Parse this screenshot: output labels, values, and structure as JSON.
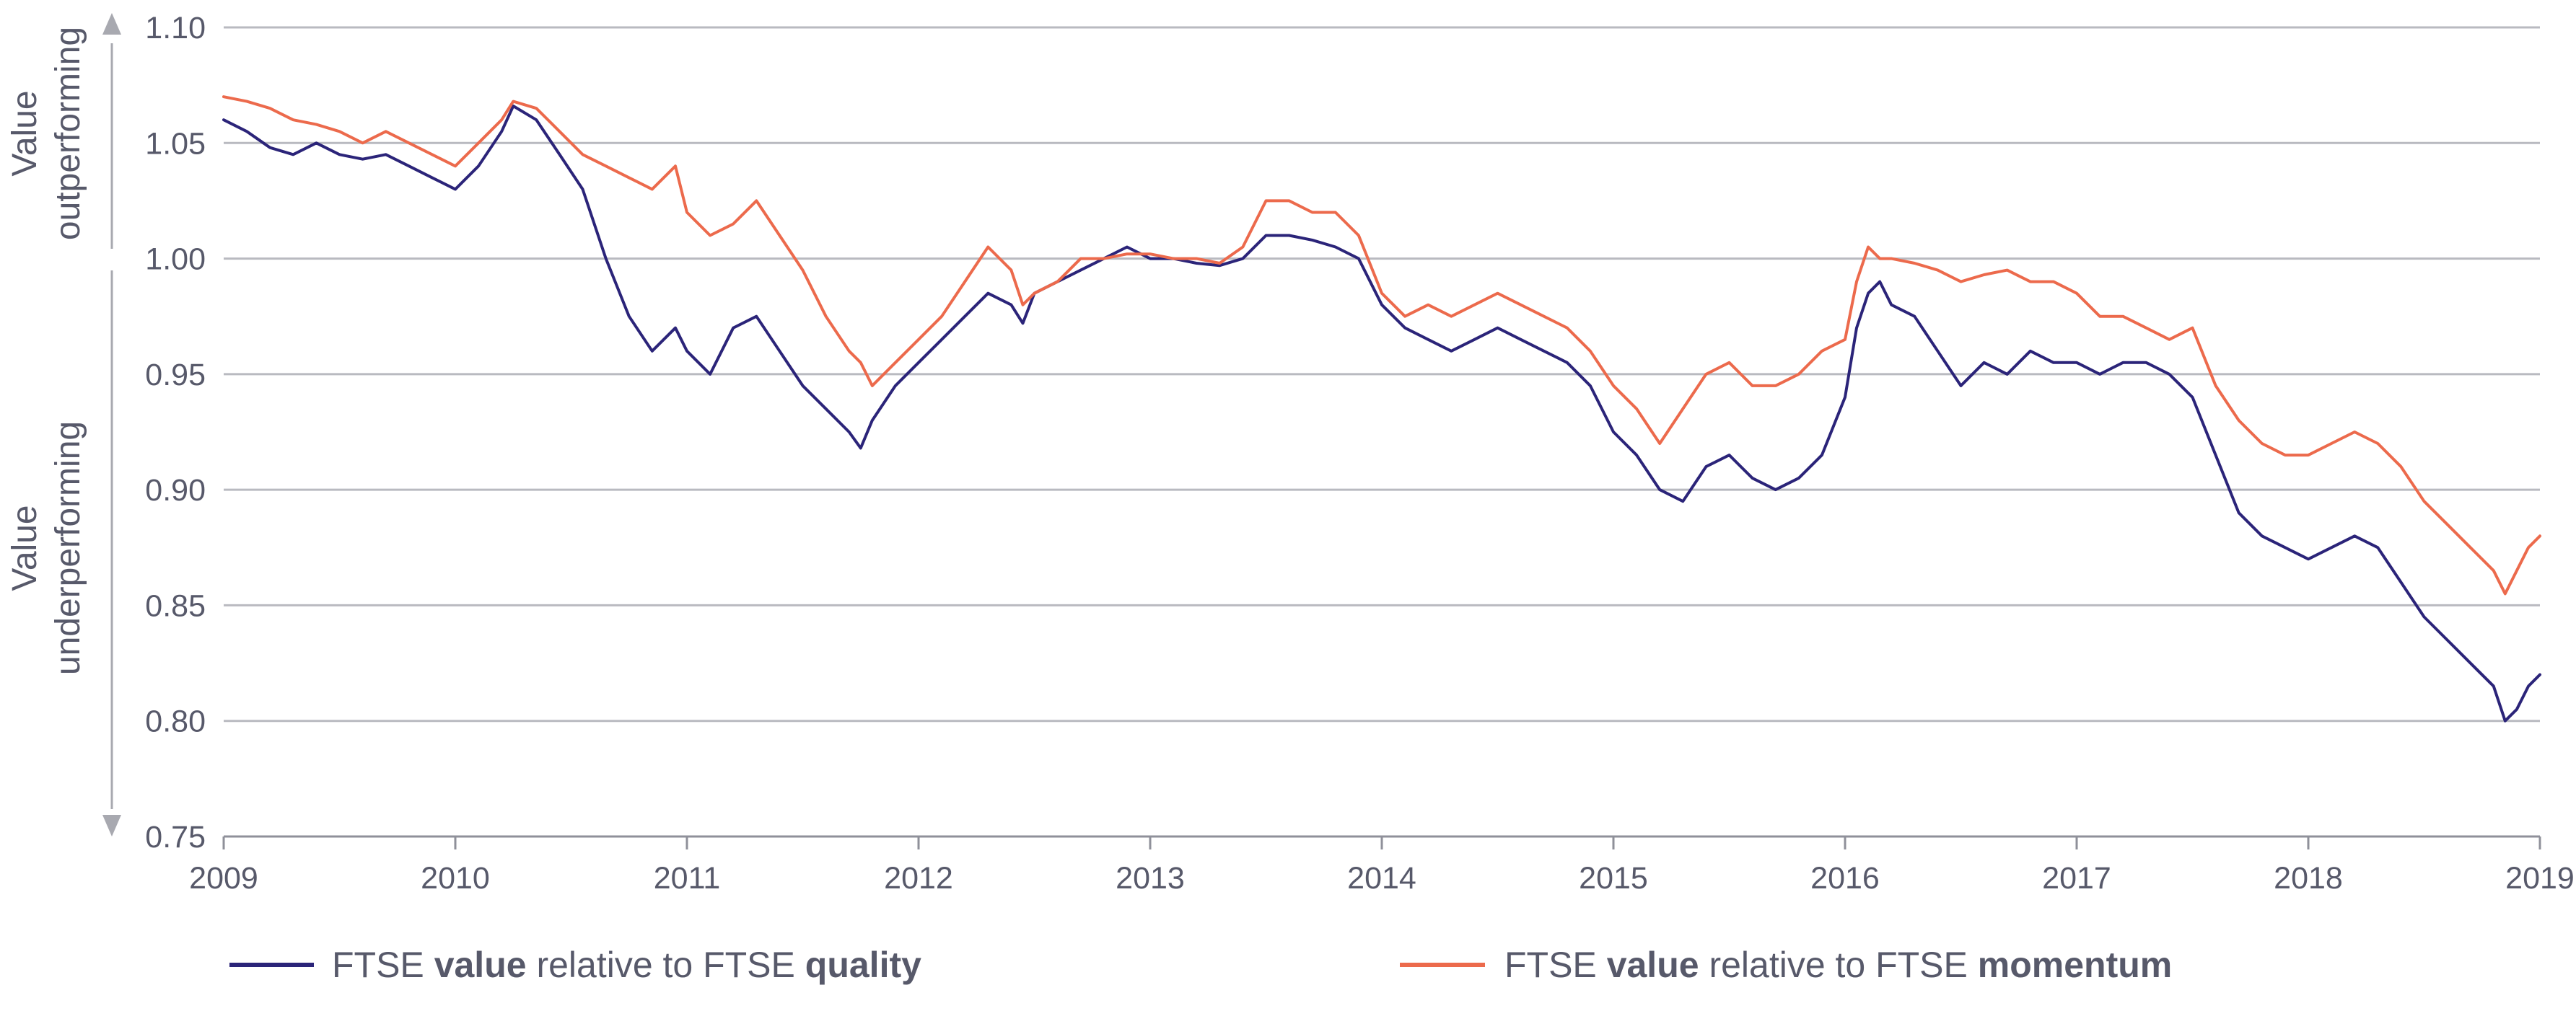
{
  "chart_data": {
    "type": "line",
    "title": "",
    "xlabel": "",
    "ylabel": "",
    "side_labels": {
      "top_line1": "Value",
      "top_line2": "outperforming",
      "bottom_line1": "Value",
      "bottom_line2": "underperforming"
    },
    "xlim": [
      2009,
      2019
    ],
    "ylim": [
      0.75,
      1.1
    ],
    "x_ticks": [
      "2009",
      "2010",
      "2011",
      "2012",
      "2013",
      "2014",
      "2015",
      "2016",
      "2017",
      "2018",
      "2019"
    ],
    "y_ticks": [
      "0.75",
      "0.80",
      "0.85",
      "0.90",
      "0.95",
      "1.00",
      "1.05",
      "1.10"
    ],
    "grid": true,
    "legend_position": "bottom",
    "series": [
      {
        "name": "FTSE value relative to FTSE quality",
        "legend": {
          "prefix": "FTSE ",
          "bold1": "value",
          "middle": " relative to FTSE ",
          "bold2": "quality"
        },
        "color": "#2b2479",
        "x": [
          2009.0,
          2009.1,
          2009.2,
          2009.3,
          2009.4,
          2009.5,
          2009.6,
          2009.7,
          2009.8,
          2009.9,
          2010.0,
          2010.1,
          2010.2,
          2010.25,
          2010.35,
          2010.45,
          2010.55,
          2010.65,
          2010.75,
          2010.85,
          2010.95,
          2011.0,
          2011.1,
          2011.2,
          2011.3,
          2011.4,
          2011.5,
          2011.6,
          2011.7,
          2011.75,
          2011.8,
          2011.9,
          2012.0,
          2012.1,
          2012.2,
          2012.3,
          2012.4,
          2012.45,
          2012.5,
          2012.6,
          2012.7,
          2012.8,
          2012.9,
          2013.0,
          2013.1,
          2013.2,
          2013.3,
          2013.4,
          2013.5,
          2013.6,
          2013.7,
          2013.8,
          2013.9,
          2014.0,
          2014.1,
          2014.2,
          2014.3,
          2014.4,
          2014.5,
          2014.6,
          2014.7,
          2014.8,
          2014.9,
          2015.0,
          2015.1,
          2015.2,
          2015.3,
          2015.4,
          2015.5,
          2015.6,
          2015.7,
          2015.8,
          2015.9,
          2016.0,
          2016.05,
          2016.1,
          2016.15,
          2016.2,
          2016.3,
          2016.4,
          2016.5,
          2016.6,
          2016.7,
          2016.8,
          2016.9,
          2017.0,
          2017.1,
          2017.2,
          2017.3,
          2017.4,
          2017.5,
          2017.6,
          2017.7,
          2017.8,
          2017.9,
          2018.0,
          2018.1,
          2018.2,
          2018.3,
          2018.4,
          2018.5,
          2018.6,
          2018.7,
          2018.8,
          2018.85,
          2018.9,
          2018.95,
          2019.0
        ],
        "y": [
          1.06,
          1.055,
          1.048,
          1.045,
          1.05,
          1.045,
          1.043,
          1.045,
          1.04,
          1.035,
          1.03,
          1.04,
          1.055,
          1.066,
          1.06,
          1.045,
          1.03,
          1.0,
          0.975,
          0.96,
          0.97,
          0.96,
          0.95,
          0.97,
          0.975,
          0.96,
          0.945,
          0.935,
          0.925,
          0.918,
          0.93,
          0.945,
          0.955,
          0.965,
          0.975,
          0.985,
          0.98,
          0.972,
          0.985,
          0.99,
          0.995,
          1.0,
          1.005,
          1.0,
          1.0,
          0.998,
          0.997,
          1.0,
          1.01,
          1.01,
          1.008,
          1.005,
          1.0,
          0.98,
          0.97,
          0.965,
          0.96,
          0.965,
          0.97,
          0.965,
          0.96,
          0.955,
          0.945,
          0.925,
          0.915,
          0.9,
          0.895,
          0.91,
          0.915,
          0.905,
          0.9,
          0.905,
          0.915,
          0.94,
          0.97,
          0.985,
          0.99,
          0.98,
          0.975,
          0.96,
          0.945,
          0.955,
          0.95,
          0.96,
          0.955,
          0.955,
          0.95,
          0.955,
          0.955,
          0.95,
          0.94,
          0.915,
          0.89,
          0.88,
          0.875,
          0.87,
          0.875,
          0.88,
          0.875,
          0.86,
          0.845,
          0.835,
          0.825,
          0.815,
          0.8,
          0.805,
          0.815,
          0.82
        ]
      },
      {
        "name": "FTSE value relative to FTSE momentum",
        "legend": {
          "prefix": "FTSE ",
          "bold1": "value",
          "middle": " relative to FTSE ",
          "bold2": "momentum"
        },
        "color": "#ec6a4c",
        "x": [
          2009.0,
          2009.1,
          2009.2,
          2009.3,
          2009.4,
          2009.5,
          2009.6,
          2009.7,
          2009.8,
          2009.9,
          2010.0,
          2010.1,
          2010.2,
          2010.25,
          2010.35,
          2010.45,
          2010.55,
          2010.65,
          2010.75,
          2010.85,
          2010.95,
          2011.0,
          2011.1,
          2011.2,
          2011.3,
          2011.4,
          2011.5,
          2011.6,
          2011.7,
          2011.75,
          2011.8,
          2011.9,
          2012.0,
          2012.1,
          2012.2,
          2012.3,
          2012.4,
          2012.45,
          2012.5,
          2012.6,
          2012.7,
          2012.8,
          2012.9,
          2013.0,
          2013.1,
          2013.2,
          2013.3,
          2013.4,
          2013.5,
          2013.6,
          2013.7,
          2013.8,
          2013.9,
          2014.0,
          2014.1,
          2014.2,
          2014.3,
          2014.4,
          2014.5,
          2014.6,
          2014.7,
          2014.8,
          2014.9,
          2015.0,
          2015.1,
          2015.2,
          2015.3,
          2015.4,
          2015.5,
          2015.6,
          2015.7,
          2015.8,
          2015.9,
          2016.0,
          2016.05,
          2016.1,
          2016.15,
          2016.2,
          2016.3,
          2016.4,
          2016.5,
          2016.6,
          2016.7,
          2016.8,
          2016.9,
          2017.0,
          2017.1,
          2017.2,
          2017.3,
          2017.4,
          2017.5,
          2017.6,
          2017.7,
          2017.8,
          2017.9,
          2018.0,
          2018.1,
          2018.2,
          2018.3,
          2018.4,
          2018.5,
          2018.6,
          2018.7,
          2018.8,
          2018.85,
          2018.9,
          2018.95,
          2019.0
        ],
        "y": [
          1.07,
          1.068,
          1.065,
          1.06,
          1.058,
          1.055,
          1.05,
          1.055,
          1.05,
          1.045,
          1.04,
          1.05,
          1.06,
          1.068,
          1.065,
          1.055,
          1.045,
          1.04,
          1.035,
          1.03,
          1.04,
          1.02,
          1.01,
          1.015,
          1.025,
          1.01,
          0.995,
          0.975,
          0.96,
          0.955,
          0.945,
          0.955,
          0.965,
          0.975,
          0.99,
          1.005,
          0.995,
          0.98,
          0.985,
          0.99,
          1.0,
          1.0,
          1.002,
          1.002,
          1.0,
          1.0,
          0.998,
          1.005,
          1.025,
          1.025,
          1.02,
          1.02,
          1.01,
          0.985,
          0.975,
          0.98,
          0.975,
          0.98,
          0.985,
          0.98,
          0.975,
          0.97,
          0.96,
          0.945,
          0.935,
          0.92,
          0.935,
          0.95,
          0.955,
          0.945,
          0.945,
          0.95,
          0.96,
          0.965,
          0.99,
          1.005,
          1.0,
          1.0,
          0.998,
          0.995,
          0.99,
          0.993,
          0.995,
          0.99,
          0.99,
          0.985,
          0.975,
          0.975,
          0.97,
          0.965,
          0.97,
          0.945,
          0.93,
          0.92,
          0.915,
          0.915,
          0.92,
          0.925,
          0.92,
          0.91,
          0.895,
          0.885,
          0.875,
          0.865,
          0.855,
          0.865,
          0.875,
          0.88
        ]
      }
    ]
  }
}
